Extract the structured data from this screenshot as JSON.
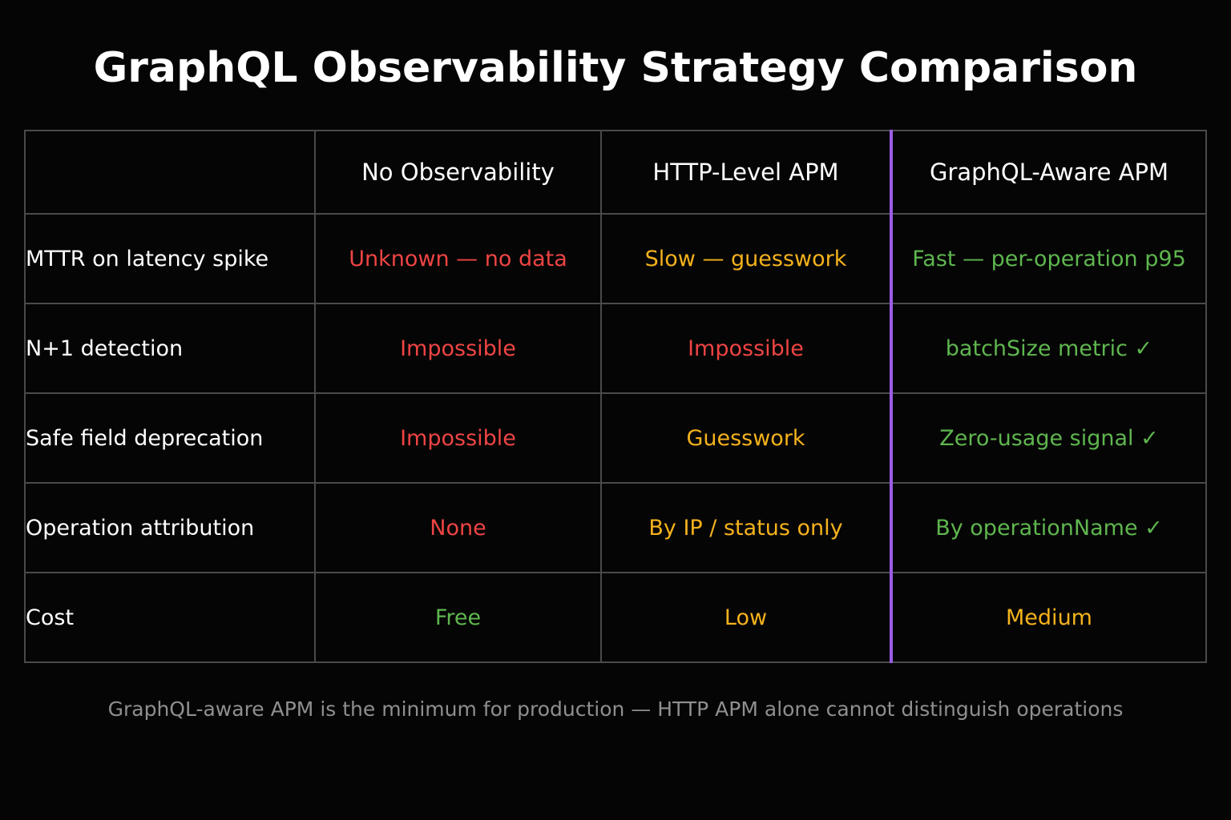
{
  "title": "GraphQL Observability Strategy Comparison",
  "footnote": "GraphQL-aware APM is the minimum for production — HTTP APM alone cannot distinguish operations",
  "colors": {
    "bad": "#ef4444",
    "warn": "#f5b21d",
    "good": "#5fb64f",
    "highlight_divider": "#9b5de5"
  },
  "chart_data": {
    "type": "table",
    "columns": [
      "",
      "No Observability",
      "HTTP-Level APM",
      "GraphQL-Aware APM"
    ],
    "highlighted_column": "GraphQL-Aware APM",
    "rows": [
      {
        "label": "MTTR on latency spike",
        "cells": [
          {
            "text": "Unknown — no data",
            "rating": "bad"
          },
          {
            "text": "Slow — guesswork",
            "rating": "warn"
          },
          {
            "text": "Fast — per-operation p95",
            "rating": "good"
          }
        ]
      },
      {
        "label": "N+1 detection",
        "cells": [
          {
            "text": "Impossible",
            "rating": "bad"
          },
          {
            "text": "Impossible",
            "rating": "bad"
          },
          {
            "text": "batchSize metric ✓",
            "rating": "good"
          }
        ]
      },
      {
        "label": "Safe field deprecation",
        "cells": [
          {
            "text": "Impossible",
            "rating": "bad"
          },
          {
            "text": "Guesswork",
            "rating": "warn"
          },
          {
            "text": "Zero-usage signal ✓",
            "rating": "good"
          }
        ]
      },
      {
        "label": "Operation attribution",
        "cells": [
          {
            "text": "None",
            "rating": "bad"
          },
          {
            "text": "By IP / status only",
            "rating": "warn"
          },
          {
            "text": "By operationName ✓",
            "rating": "good"
          }
        ]
      },
      {
        "label": "Cost",
        "cells": [
          {
            "text": "Free",
            "rating": "good"
          },
          {
            "text": "Low",
            "rating": "warn"
          },
          {
            "text": "Medium",
            "rating": "warn"
          }
        ]
      }
    ]
  }
}
